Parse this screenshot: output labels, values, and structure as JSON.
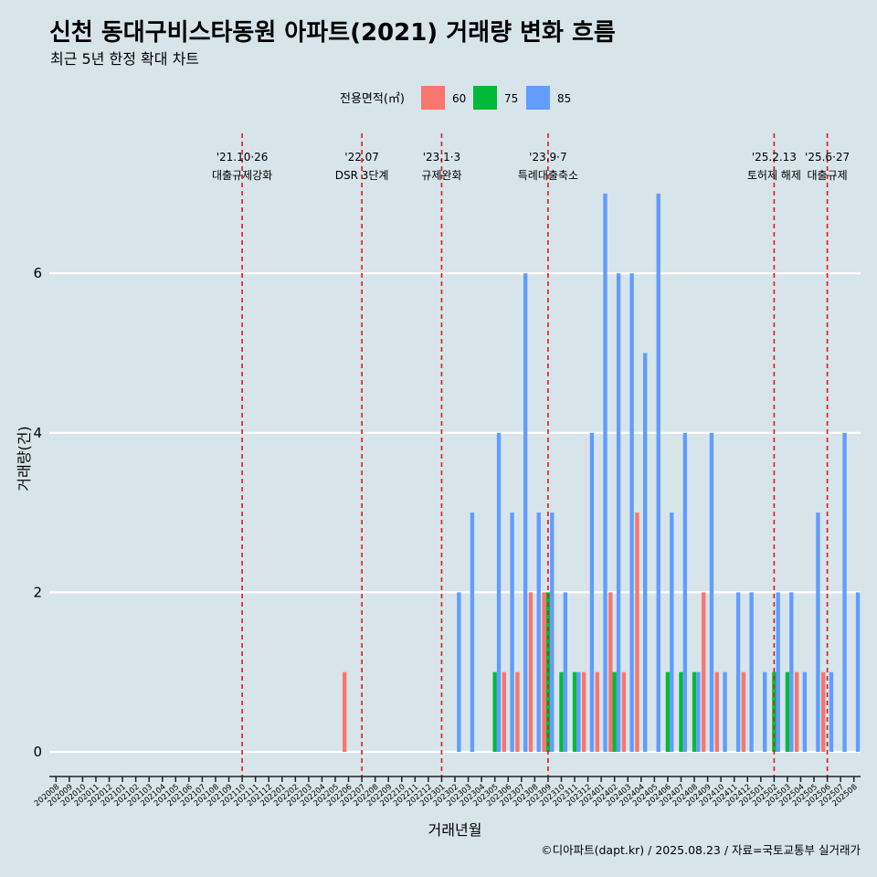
{
  "chart_data": {
    "type": "bar",
    "title": "신천 동대구비스타동원 아파트(2021) 거래량 변화 흐름",
    "subtitle": "최근 5년 한정 확대 차트",
    "xlabel": "거래년월",
    "ylabel": "거래량(건)",
    "caption": "©디아파트(dapt.kr) / 2025.08.23 / 자료=국토교통부 실거래가",
    "legend": {
      "title": "전용면적(㎡)",
      "position": "top"
    },
    "ylim": [
      0,
      7
    ],
    "yticks": [
      0,
      2,
      4,
      6
    ],
    "grid": true,
    "categories": [
      "202008",
      "202009",
      "202010",
      "202011",
      "202012",
      "202101",
      "202102",
      "202103",
      "202104",
      "202105",
      "202106",
      "202107",
      "202108",
      "202109",
      "202110",
      "202111",
      "202112",
      "202201",
      "202202",
      "202203",
      "202204",
      "202205",
      "202206",
      "202207",
      "202208",
      "202209",
      "202210",
      "202211",
      "202212",
      "202301",
      "202302",
      "202303",
      "202304",
      "202305",
      "202306",
      "202307",
      "202308",
      "202309",
      "202310",
      "202311",
      "202312",
      "202401",
      "202402",
      "202403",
      "202404",
      "202405",
      "202406",
      "202407",
      "202408",
      "202409",
      "202410",
      "202411",
      "202412",
      "202501",
      "202502",
      "202503",
      "202504",
      "202505",
      "202506",
      "202507",
      "202508"
    ],
    "series": [
      {
        "name": "60",
        "color": "#f8766d",
        "points": [
          [
            "202206",
            1
          ],
          [
            "202306",
            1
          ],
          [
            "202307",
            1
          ],
          [
            "202308",
            2
          ],
          [
            "202309",
            2
          ],
          [
            "202312",
            1
          ],
          [
            "202401",
            1
          ],
          [
            "202402",
            2
          ],
          [
            "202403",
            1
          ],
          [
            "202404",
            3
          ],
          [
            "202409",
            2
          ],
          [
            "202410",
            1
          ],
          [
            "202412",
            1
          ],
          [
            "202504",
            1
          ],
          [
            "202506",
            1
          ]
        ]
      },
      {
        "name": "75",
        "color": "#00ba38",
        "points": [
          [
            "202305",
            1
          ],
          [
            "202309",
            2
          ],
          [
            "202310",
            1
          ],
          [
            "202311",
            1
          ],
          [
            "202402",
            1
          ],
          [
            "202406",
            1
          ],
          [
            "202407",
            1
          ],
          [
            "202408",
            1
          ],
          [
            "202502",
            1
          ],
          [
            "202503",
            1
          ]
        ]
      },
      {
        "name": "85",
        "color": "#619cff",
        "points": [
          [
            "202302",
            2
          ],
          [
            "202303",
            3
          ],
          [
            "202305",
            4
          ],
          [
            "202306",
            3
          ],
          [
            "202307",
            6
          ],
          [
            "202308",
            3
          ],
          [
            "202309",
            3
          ],
          [
            "202310",
            2
          ],
          [
            "202311",
            1
          ],
          [
            "202312",
            4
          ],
          [
            "202401",
            7
          ],
          [
            "202402",
            6
          ],
          [
            "202403",
            6
          ],
          [
            "202404",
            5
          ],
          [
            "202405",
            7
          ],
          [
            "202406",
            3
          ],
          [
            "202407",
            4
          ],
          [
            "202408",
            1
          ],
          [
            "202409",
            4
          ],
          [
            "202410",
            1
          ],
          [
            "202411",
            2
          ],
          [
            "202412",
            2
          ],
          [
            "202501",
            1
          ],
          [
            "202502",
            2
          ],
          [
            "202503",
            2
          ],
          [
            "202504",
            1
          ],
          [
            "202505",
            3
          ],
          [
            "202506",
            1
          ],
          [
            "202507",
            4
          ],
          [
            "202508",
            2
          ]
        ]
      }
    ],
    "events": [
      {
        "month": "202110",
        "date": "'21.10·26",
        "label": "대출규제강화"
      },
      {
        "month": "202207",
        "date": "'22.07",
        "label": "DSR 3단계"
      },
      {
        "month": "202301",
        "date": "'23.1·3",
        "label": "규제완화"
      },
      {
        "month": "202309",
        "date": "'23.9·7",
        "label": "특례대출축소"
      },
      {
        "month": "202502",
        "date": "'25.2.13",
        "label": "토허제 해제"
      },
      {
        "month": "202506",
        "date": "'25.6·27",
        "label": "대출규제"
      }
    ]
  }
}
